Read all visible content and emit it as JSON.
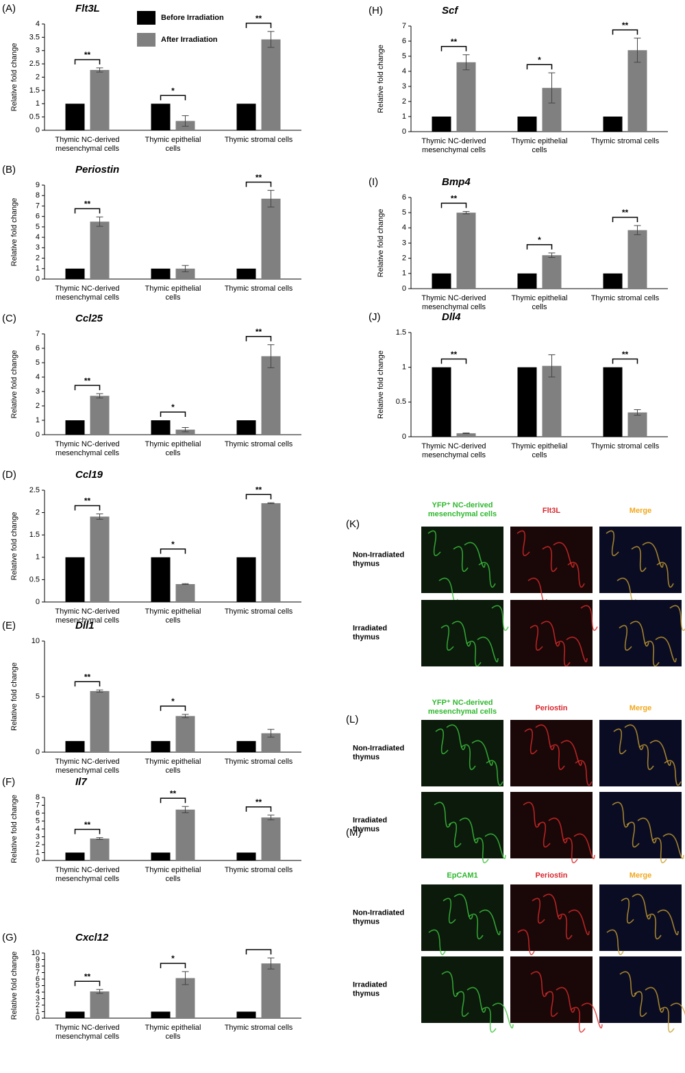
{
  "chart_data": [
    {
      "type": "bar",
      "panel": "(A)",
      "title": "Flt3L",
      "y_label": "Relative fold change",
      "categories": [
        "Thymic NC-derived\nmesenchymal cells",
        "Thymic epithelial\ncells",
        "Thymic stromal cells"
      ],
      "series": [
        {
          "name": "Before Irradiation",
          "color": "#000000",
          "values": [
            1,
            1,
            1
          ]
        },
        {
          "name": "After Irradiation",
          "color": "#808080",
          "values": [
            2.27,
            0.35,
            3.42
          ],
          "errors": [
            0.08,
            0.2,
            0.3
          ]
        }
      ],
      "significance": [
        "**",
        "*",
        "**"
      ],
      "brackets": [
        true,
        true,
        true
      ],
      "ylim": [
        0,
        4
      ],
      "yticks": [
        0,
        0.5,
        1,
        1.5,
        2,
        2.5,
        3,
        3.5,
        4
      ]
    },
    {
      "type": "bar",
      "panel": "(B)",
      "title": "Periostin",
      "y_label": "Relative fold change",
      "categories": [
        "Thymic NC-derived\nmesenchymal cells",
        "Thymic epithelial\ncells",
        "Thymic stromal cells"
      ],
      "series": [
        {
          "color": "#000000",
          "values": [
            1,
            1,
            1
          ]
        },
        {
          "color": "#808080",
          "values": [
            5.5,
            1.0,
            7.7
          ],
          "errors": [
            0.45,
            0.3,
            0.8
          ]
        }
      ],
      "significance": [
        "**",
        null,
        "**"
      ],
      "brackets": [
        true,
        false,
        true
      ],
      "ylim": [
        0,
        9
      ],
      "yticks": [
        0,
        1,
        2,
        3,
        4,
        5,
        6,
        7,
        8,
        9
      ]
    },
    {
      "type": "bar",
      "panel": "(C)",
      "title": "Ccl25",
      "y_label": "Relative fold change",
      "categories": [
        "Thymic NC-derived\nmesenchymal cells",
        "Thymic epithelial\ncells",
        "Thymic stromal cells"
      ],
      "series": [
        {
          "color": "#000000",
          "values": [
            1,
            1,
            1
          ]
        },
        {
          "color": "#808080",
          "values": [
            2.7,
            0.35,
            5.45
          ],
          "errors": [
            0.15,
            0.15,
            0.8
          ]
        }
      ],
      "significance": [
        "**",
        "*",
        "**"
      ],
      "brackets": [
        true,
        true,
        true
      ],
      "ylim": [
        0,
        7
      ],
      "yticks": [
        0,
        1,
        2,
        3,
        4,
        5,
        6,
        7
      ]
    },
    {
      "type": "bar",
      "panel": "(D)",
      "title": "Ccl19",
      "y_label": "Relative fold change",
      "categories": [
        "Thymic NC-derived\nmesenchymal cells",
        "Thymic epithelial\ncells",
        "Thymic stromal cells"
      ],
      "series": [
        {
          "color": "#000000",
          "values": [
            1,
            1,
            1
          ]
        },
        {
          "color": "#808080",
          "values": [
            1.91,
            0.4,
            2.21
          ],
          "errors": [
            0.06,
            0.01,
            0.01
          ]
        }
      ],
      "significance": [
        "**",
        "*",
        "**"
      ],
      "brackets": [
        true,
        true,
        true
      ],
      "ylim": [
        0,
        2.5
      ],
      "yticks": [
        0,
        0.5,
        1,
        1.5,
        2,
        2.5
      ]
    },
    {
      "type": "bar",
      "panel": "(E)",
      "title": "Dll1",
      "y_label": "Relative fold change",
      "categories": [
        "Thymic NC-derived\nmesenchymal cells",
        "Thymic epithelial\ncells",
        "Thymic stromal cells"
      ],
      "series": [
        {
          "color": "#000000",
          "values": [
            1,
            1,
            1
          ]
        },
        {
          "color": "#808080",
          "values": [
            5.5,
            3.25,
            1.7
          ],
          "errors": [
            0.1,
            0.15,
            0.35
          ]
        }
      ],
      "significance": [
        "**",
        "*",
        null
      ],
      "brackets": [
        true,
        true,
        false
      ],
      "ylim": [
        0,
        10
      ],
      "yticks": [
        0,
        5,
        10
      ]
    },
    {
      "type": "bar",
      "panel": "(F)",
      "title": "Il7",
      "y_label": "Relative fold change",
      "categories": [
        "Thymic NC-derived\nmesenchymal cells",
        "Thymic epithelial\ncells",
        "Thymic stromal cells"
      ],
      "series": [
        {
          "color": "#000000",
          "values": [
            1,
            1,
            1
          ]
        },
        {
          "color": "#808080",
          "values": [
            2.78,
            6.45,
            5.45
          ],
          "errors": [
            0.12,
            0.4,
            0.3
          ]
        }
      ],
      "significance": [
        "**",
        "**",
        "**"
      ],
      "brackets": [
        true,
        true,
        true
      ],
      "ylim": [
        0,
        8
      ],
      "yticks": [
        0,
        1,
        2,
        3,
        4,
        5,
        6,
        7,
        8
      ]
    },
    {
      "type": "bar",
      "panel": "(G)",
      "title": "Cxcl12",
      "y_label": "Relative fold change",
      "categories": [
        "Thymic NC-derived\nmesenchymal cells",
        "Thymic epithelial\ncells",
        "Thymic stromal cells"
      ],
      "series": [
        {
          "color": "#000000",
          "values": [
            1,
            1,
            1
          ]
        },
        {
          "color": "#808080",
          "values": [
            4.1,
            6.15,
            8.4
          ],
          "errors": [
            0.3,
            1.0,
            0.85
          ]
        }
      ],
      "significance": [
        "**",
        "*",
        null
      ],
      "brackets": [
        true,
        true,
        true
      ],
      "ylim": [
        0,
        10
      ],
      "yticks": [
        0,
        1,
        2,
        3,
        4,
        5,
        6,
        7,
        8,
        9,
        10
      ]
    },
    {
      "type": "bar",
      "panel": "(H)",
      "title": "Scf",
      "y_label": "Relative fold change",
      "categories": [
        "Thymic NC-derived\nmesenchymal cells",
        "Thymic epithelial\ncells",
        "Thymic stromal cells"
      ],
      "series": [
        {
          "color": "#000000",
          "values": [
            1,
            1,
            1
          ]
        },
        {
          "color": "#808080",
          "values": [
            4.6,
            2.9,
            5.4
          ],
          "errors": [
            0.5,
            1.0,
            0.8
          ]
        }
      ],
      "significance": [
        "**",
        "*",
        "**"
      ],
      "brackets": [
        true,
        true,
        true
      ],
      "ylim": [
        0,
        7
      ],
      "yticks": [
        0,
        1,
        2,
        3,
        4,
        5,
        6,
        7
      ]
    },
    {
      "type": "bar",
      "panel": "(I)",
      "title": "Bmp4",
      "y_label": "Relative fold change",
      "categories": [
        "Thymic NC-derived\nmesenchymal cells",
        "Thymic epithelial\ncells",
        "Thymic stromal cells"
      ],
      "series": [
        {
          "color": "#000000",
          "values": [
            1,
            1,
            1
          ]
        },
        {
          "color": "#808080",
          "values": [
            5.0,
            2.2,
            3.85
          ],
          "errors": [
            0.08,
            0.15,
            0.3
          ]
        }
      ],
      "significance": [
        "**",
        "*",
        "**"
      ],
      "brackets": [
        true,
        true,
        true
      ],
      "ylim": [
        0,
        6
      ],
      "yticks": [
        0,
        1,
        2,
        3,
        4,
        5,
        6
      ]
    },
    {
      "type": "bar",
      "panel": "(J)",
      "title": "Dll4",
      "y_label": "Relative fold change",
      "categories": [
        "Thymic NC-derived\nmesenchymal cells",
        "Thymic epithelial\ncells",
        "Thymic stromal cells"
      ],
      "series": [
        {
          "color": "#000000",
          "values": [
            1,
            1,
            1
          ]
        },
        {
          "color": "#808080",
          "values": [
            0.05,
            1.02,
            0.35
          ],
          "errors": [
            0.005,
            0.16,
            0.04
          ]
        }
      ],
      "significance": [
        "**",
        null,
        "**"
      ],
      "brackets": [
        true,
        false,
        true
      ],
      "ylim": [
        0,
        1.5
      ],
      "yticks": [
        0,
        0.5,
        1,
        1.5
      ]
    }
  ],
  "image_panels": [
    {
      "panel": "(K)",
      "headers": [
        "YFP⁺ NC-derived\nmesenchymal cells",
        "Flt3L",
        "Merge"
      ],
      "header_colors": [
        "#2eb82e",
        "#d9262c",
        "#f0a81c"
      ],
      "rows": [
        "Non-Irradiated\nthymus",
        "Irradiated\nthymus"
      ]
    },
    {
      "panel": "(L)",
      "headers": [
        "YFP⁺ NC-derived\nmesenchymal cells",
        "Periostin",
        "Merge"
      ],
      "header_colors": [
        "#2eb82e",
        "#d9262c",
        "#f0a81c"
      ],
      "rows": [
        "Non-Irradiated\nthymus",
        "Irradiated\nthymus"
      ]
    },
    {
      "panel": "(M)",
      "headers": [
        "EpCAM1",
        "Periostin",
        "Merge"
      ],
      "header_colors": [
        "#2eb82e",
        "#d9262c",
        "#f0a81c"
      ],
      "rows": [
        "Non-Irradiated\nthymus",
        "Irradiated\nthymus"
      ]
    }
  ]
}
